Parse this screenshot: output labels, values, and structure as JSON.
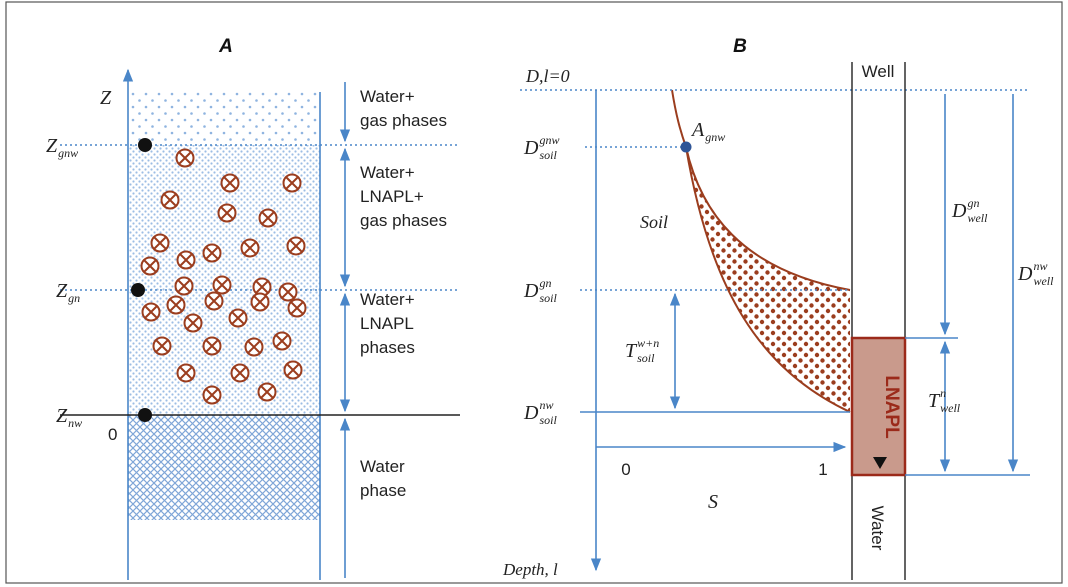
{
  "panel_a": {
    "title": "A",
    "axis": "Z",
    "z_gnw": {
      "base": "Z",
      "sub": "gnw"
    },
    "z_gn": {
      "base": "Z",
      "sub": "gn"
    },
    "z_nw": {
      "base": "Z",
      "sub": "nw"
    },
    "origin": "0",
    "zones": [
      [
        "Water+",
        "gas phases"
      ],
      [
        "Water+",
        "LNAPL+",
        "gas phases"
      ],
      [
        "Water+",
        "LNAPL",
        "phases"
      ],
      [
        "Water",
        "phase"
      ]
    ]
  },
  "panel_b": {
    "title": "B",
    "surface": "D,l=0",
    "well": "Well",
    "a_gnw": {
      "base": "A",
      "sub": "gnw"
    },
    "d_soil_gnw": {
      "base": "D",
      "sup": "gnw",
      "sub": "soil"
    },
    "soil": "Soil",
    "d_soil_gn": {
      "base": "D",
      "sup": "gn",
      "sub": "soil"
    },
    "t_soil_wn": {
      "base": "T",
      "sup": "w+n",
      "sub": "soil"
    },
    "d_soil_nw": {
      "base": "D",
      "sup": "nw",
      "sub": "soil"
    },
    "s_ticks": [
      "0",
      "1"
    ],
    "s_label": "S",
    "depth_label": "Depth, l",
    "d_well_gn": {
      "base": "D",
      "sup": "gn",
      "sub": "well"
    },
    "d_well_nw": {
      "base": "D",
      "sup": "nw",
      "sub": "well"
    },
    "t_well_n": {
      "base": "T",
      "sup": "n",
      "sub": "well"
    },
    "lnapl": "LNAPL",
    "water": "Water"
  }
}
